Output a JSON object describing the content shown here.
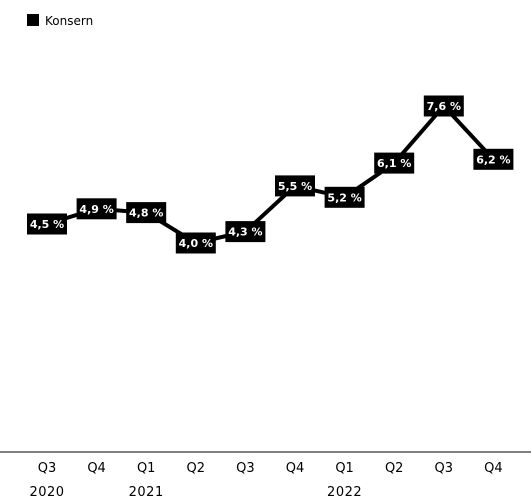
{
  "chart_data": {
    "type": "line",
    "title": "",
    "xlabel": "",
    "ylabel": "",
    "categories": [
      "Q3",
      "Q4",
      "Q1",
      "Q2",
      "Q3",
      "Q4",
      "Q1",
      "Q2",
      "Q3",
      "Q4"
    ],
    "year_labels": [
      {
        "label": "2020",
        "category_index": 0
      },
      {
        "label": "2021",
        "category_index": 2
      },
      {
        "label": "2022",
        "category_index": 6
      }
    ],
    "series": [
      {
        "name": "Konsern",
        "values": [
          4.5,
          4.9,
          4.8,
          4.0,
          4.3,
          5.5,
          5.2,
          6.1,
          7.6,
          6.2
        ],
        "data_labels": [
          "4,5 %",
          "4,9 %",
          "4,8 %",
          "4,0 %",
          "4,3 %",
          "5,5 %",
          "5,2 %",
          "6,1 %",
          "7,6 %",
          "6,2 %"
        ],
        "color": "#000000"
      }
    ],
    "ylim": [
      0,
      9
    ],
    "grid": false,
    "legend_position": "top-left",
    "label_color": "#ffffff",
    "axis_color": "#000000"
  }
}
